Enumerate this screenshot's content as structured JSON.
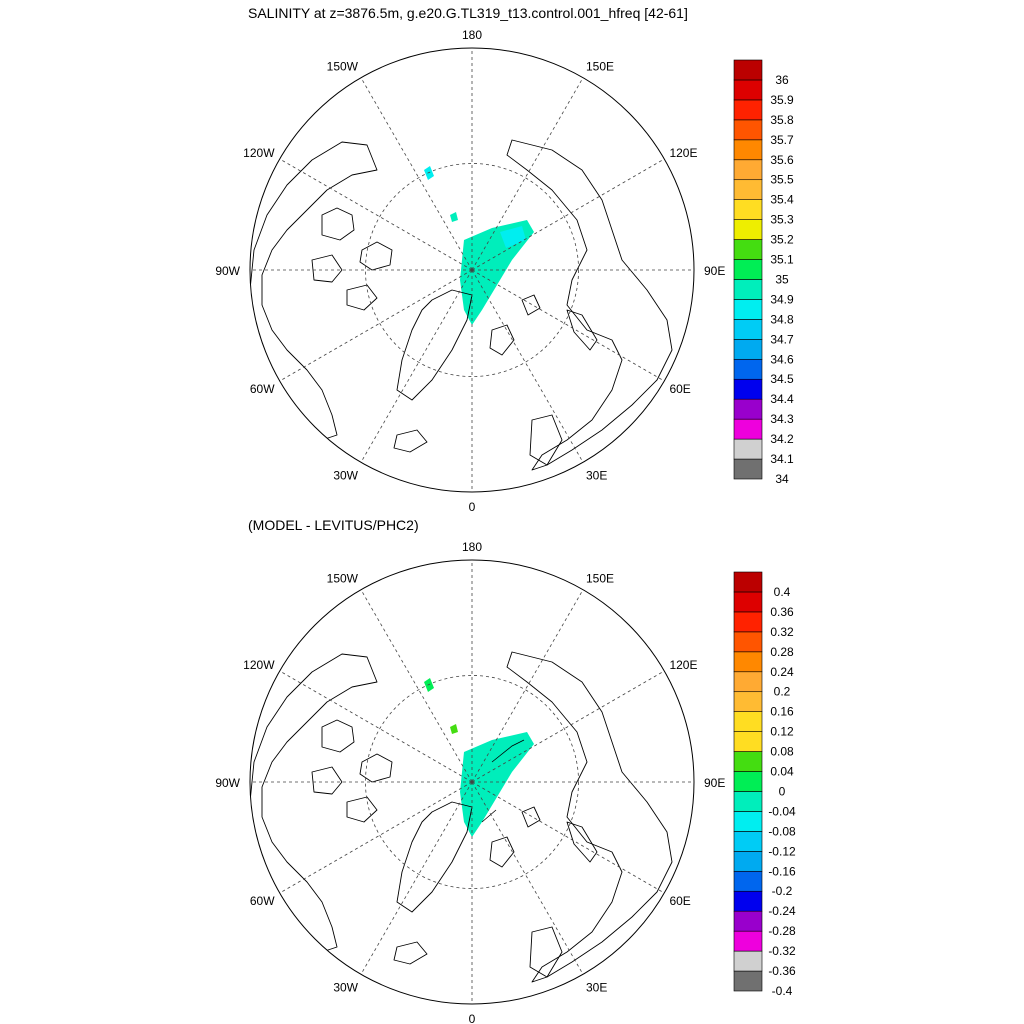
{
  "chart_data": [
    {
      "type": "heatmap",
      "projection": "north-polar-stereographic",
      "title": "SALINITY at z=3876.5m, g.e20.G.TL319_t13.control.001_hfreq [42-61]",
      "longitude_labels": [
        "180",
        "150E",
        "120E",
        "90E",
        "60E",
        "30E",
        "0",
        "30W",
        "60W",
        "90W",
        "120W",
        "150W"
      ],
      "colorbar": {
        "levels": [
          "34",
          "34.1",
          "34.2",
          "34.3",
          "34.4",
          "34.5",
          "34.6",
          "34.7",
          "34.8",
          "34.9",
          "35",
          "35.1",
          "35.2",
          "35.3",
          "35.4",
          "35.5",
          "35.6",
          "35.7",
          "35.8",
          "35.9",
          "36"
        ],
        "colors": [
          "#707070",
          "#d0d0d0",
          "#ee00dd",
          "#9900cc",
          "#0000ee",
          "#0066ee",
          "#00aaf0",
          "#00ccf5",
          "#00eef0",
          "#00eebb",
          "#00ee55",
          "#44dd11",
          "#eeee00",
          "#ffdd22",
          "#ffbb33",
          "#ffaa33",
          "#ff8800",
          "#ff5500",
          "#ff2200",
          "#dd0000",
          "#bb0000"
        ]
      },
      "field_colors": [
        "#00eebb",
        "#00eef0"
      ]
    },
    {
      "type": "heatmap",
      "projection": "north-polar-stereographic",
      "title": "(MODEL - LEVITUS/PHC2)",
      "longitude_labels": [
        "180",
        "150E",
        "120E",
        "90E",
        "60E",
        "30E",
        "0",
        "30W",
        "60W",
        "90W",
        "120W",
        "150W"
      ],
      "colorbar": {
        "levels": [
          "-0.4",
          "-0.36",
          "-0.32",
          "-0.28",
          "-0.24",
          "-0.2",
          "-0.16",
          "-0.12",
          "-0.08",
          "-0.04",
          "0",
          "0.04",
          "0.08",
          "0.12",
          "0.16",
          "0.2",
          "0.24",
          "0.28",
          "0.32",
          "0.36",
          "0.4"
        ],
        "colors": [
          "#707070",
          "#d0d0d0",
          "#ee00dd",
          "#9900cc",
          "#0000ee",
          "#0066ee",
          "#00aaf0",
          "#00ccf5",
          "#00eef0",
          "#00eebb",
          "#00ee55",
          "#44dd11",
          "#ffdd22",
          "#ffdd22",
          "#ffbb33",
          "#ffaa33",
          "#ff8800",
          "#ff5500",
          "#ff2200",
          "#dd0000",
          "#bb0000"
        ]
      },
      "field_colors": [
        "#00eebb",
        "#00ee55",
        "#44dd11"
      ]
    }
  ]
}
